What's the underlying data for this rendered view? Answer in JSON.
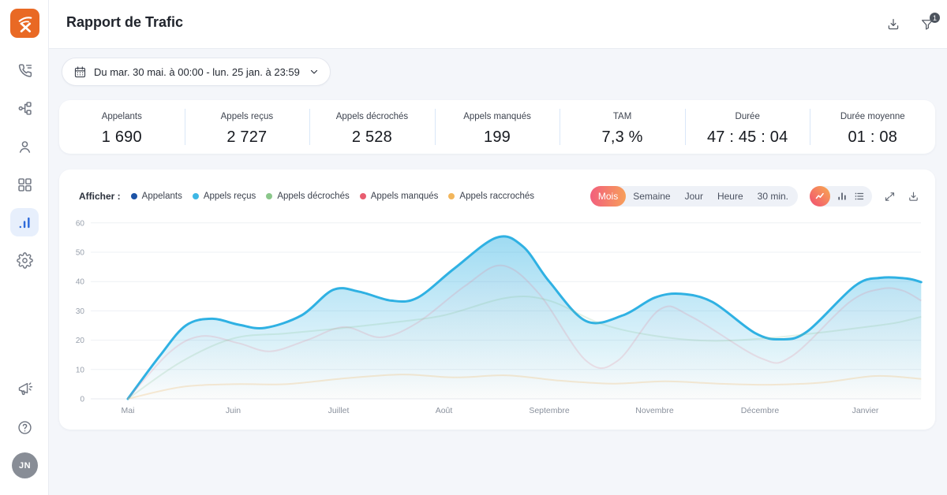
{
  "header": {
    "title": "Rapport de Trafic",
    "filter_badge": "1"
  },
  "sidebar": {
    "avatar_initials": "JN"
  },
  "date_range": {
    "value": "Du mar. 30 mai. à 00:00 - lun. 25 jan. à 23:59"
  },
  "stats": [
    {
      "label": "Appelants",
      "value": "1 690"
    },
    {
      "label": "Appels reçus",
      "value": "2 727"
    },
    {
      "label": "Appels décrochés",
      "value": "2 528"
    },
    {
      "label": "Appels manqués",
      "value": "199"
    },
    {
      "label": "TAM",
      "value": "7,3 %"
    },
    {
      "label": "Durée",
      "value": "47 : 45 : 04"
    },
    {
      "label": "Durée moyenne",
      "value": "01 : 08"
    }
  ],
  "chart_panel": {
    "legend_label": "Afficher :",
    "legend": [
      {
        "label": "Appelants",
        "color": "#1d53a6"
      },
      {
        "label": "Appels reçus",
        "color": "#3eb7e5"
      },
      {
        "label": "Appels décrochés",
        "color": "#8bc78b"
      },
      {
        "label": "Appels manqués",
        "color": "#e85d70"
      },
      {
        "label": "Appels raccrochés",
        "color": "#f2b65c"
      }
    ],
    "periods": [
      {
        "label": "Mois",
        "active": true
      },
      {
        "label": "Semaine",
        "active": false
      },
      {
        "label": "Jour",
        "active": false
      },
      {
        "label": "Heure",
        "active": false
      },
      {
        "label": "30 min.",
        "active": false
      }
    ]
  },
  "chart_data": {
    "type": "area",
    "title": "Rapport de Trafic - appels par mois",
    "x_tick_labels": [
      "Mai",
      "Juin",
      "Juillet",
      "Août",
      "Septembre",
      "Novembre",
      "Décembre",
      "Janvier"
    ],
    "ylim": [
      0,
      60
    ],
    "yticks": [
      0,
      10,
      20,
      30,
      40,
      50,
      60
    ],
    "grid": true,
    "series": [
      {
        "name": "Appels reçus",
        "color": "#2fb1e3",
        "emphasis": true,
        "points": [
          [
            0,
            0
          ],
          [
            0.3,
            14.5
          ],
          [
            0.55,
            25
          ],
          [
            0.8,
            27.3
          ],
          [
            1.05,
            25.3
          ],
          [
            1.3,
            24.2
          ],
          [
            1.65,
            28.5
          ],
          [
            1.95,
            37.2
          ],
          [
            2.2,
            36.5
          ],
          [
            2.5,
            33.5
          ],
          [
            2.75,
            34.5
          ],
          [
            3.1,
            44.5
          ],
          [
            3.5,
            55
          ],
          [
            3.75,
            52
          ],
          [
            4,
            40
          ],
          [
            4.35,
            26.5
          ],
          [
            4.7,
            28.5
          ],
          [
            5,
            34.5
          ],
          [
            5.25,
            35.8
          ],
          [
            5.55,
            33
          ],
          [
            5.95,
            22.5
          ],
          [
            6.2,
            20.3
          ],
          [
            6.45,
            23
          ],
          [
            6.9,
            38.5
          ],
          [
            7.15,
            41.3
          ],
          [
            7.4,
            41
          ],
          [
            7.53,
            39.8
          ]
        ]
      },
      {
        "name": "Appels manqués",
        "color": "#e4798f",
        "emphasis": false,
        "points": [
          [
            0,
            0
          ],
          [
            0.4,
            16
          ],
          [
            0.7,
            21.4
          ],
          [
            1.05,
            19
          ],
          [
            1.35,
            16.2
          ],
          [
            1.7,
            20
          ],
          [
            2.05,
            24.5
          ],
          [
            2.4,
            21
          ],
          [
            2.75,
            26
          ],
          [
            3.2,
            38.5
          ],
          [
            3.55,
            45.5
          ],
          [
            3.9,
            36
          ],
          [
            4.35,
            13
          ],
          [
            4.65,
            13
          ],
          [
            5.05,
            30.5
          ],
          [
            5.35,
            28
          ],
          [
            6,
            14
          ],
          [
            6.3,
            14.5
          ],
          [
            6.85,
            33
          ],
          [
            7.15,
            37.5
          ],
          [
            7.35,
            37
          ],
          [
            7.53,
            33.5
          ]
        ]
      },
      {
        "name": "Appels décrochés",
        "color": "#7bbf8e",
        "emphasis": false,
        "points": [
          [
            0,
            0
          ],
          [
            0.5,
            12.5
          ],
          [
            1,
            20.6
          ],
          [
            1.5,
            22.3
          ],
          [
            2,
            24
          ],
          [
            2.5,
            26
          ],
          [
            3,
            28.5
          ],
          [
            3.6,
            34.5
          ],
          [
            4,
            33.5
          ],
          [
            4.5,
            25.5
          ],
          [
            5,
            21.5
          ],
          [
            5.5,
            19.8
          ],
          [
            6,
            20.5
          ],
          [
            6.5,
            22.3
          ],
          [
            7,
            24.5
          ],
          [
            7.3,
            26
          ],
          [
            7.53,
            28
          ]
        ]
      },
      {
        "name": "Appels raccrochés",
        "color": "#eec27d",
        "emphasis": false,
        "points": [
          [
            0,
            0
          ],
          [
            0.5,
            4
          ],
          [
            1,
            5
          ],
          [
            1.5,
            5
          ],
          [
            2,
            6.8
          ],
          [
            2.6,
            8.3
          ],
          [
            3.1,
            7.3
          ],
          [
            3.6,
            8
          ],
          [
            4.1,
            6.2
          ],
          [
            4.6,
            5.2
          ],
          [
            5.1,
            6
          ],
          [
            5.6,
            5.2
          ],
          [
            6.1,
            4.8
          ],
          [
            6.6,
            5.6
          ],
          [
            7.1,
            7.8
          ],
          [
            7.53,
            6.8
          ]
        ]
      }
    ]
  }
}
